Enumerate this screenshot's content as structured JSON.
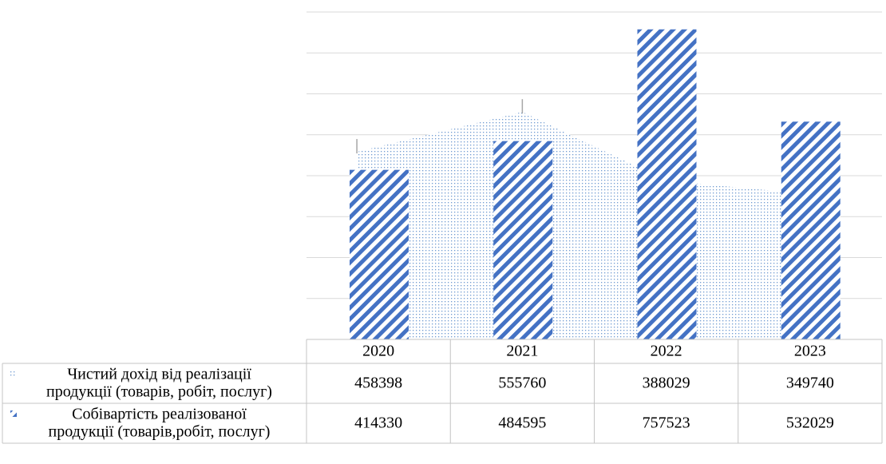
{
  "chart_data": {
    "type": "bar",
    "categories": [
      "2020",
      "2021",
      "2022",
      "2023"
    ],
    "series": [
      {
        "name": "Чистий дохід від реалізації продукції (товарів, робіт, послуг)",
        "label_lines": [
          "Чистий дохід від реалізації",
          "продукції (товарів, робіт, послуг)"
        ],
        "render": "area",
        "values": [
          458398,
          555760,
          388029,
          349740
        ],
        "color": "#6f9bd1",
        "pattern": "dots"
      },
      {
        "name": "Собівартість реалізованої продукції (товарів,робіт, послуг)",
        "label_lines": [
          "Собівартість реалізованої",
          "продукції (товарів,робіт, послуг)"
        ],
        "render": "bar",
        "values": [
          414330,
          484595,
          757523,
          532029
        ],
        "color": "#4472c4",
        "pattern": "diagonal-stripes"
      }
    ],
    "ylim": [
      0,
      800000
    ],
    "grid": true,
    "legend": "data-table",
    "title": "",
    "xlabel": "",
    "ylabel": ""
  }
}
